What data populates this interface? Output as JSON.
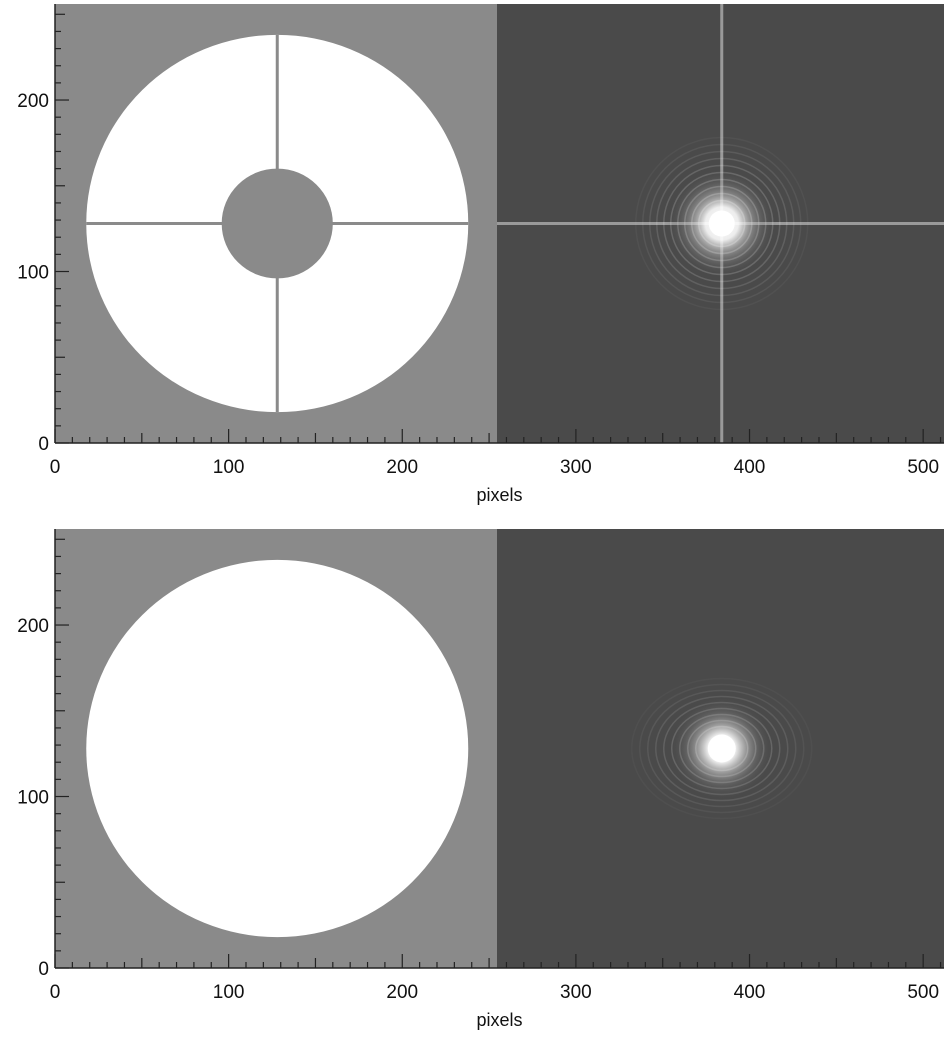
{
  "figure": {
    "panels": [
      {
        "id": "top",
        "description_free": true,
        "x_axis_label": "pixels",
        "x_ticks": [
          "0",
          "100",
          "200",
          "300",
          "400",
          "500"
        ],
        "y_ticks": [
          "0",
          "100",
          "200"
        ],
        "pupil": {
          "type": "annulus-with-spider",
          "outer_radius_px": 110,
          "inner_radius_px": 32
        },
        "psf": {
          "style": "spider-diffraction"
        }
      },
      {
        "id": "bottom",
        "x_axis_label": "pixels",
        "x_ticks": [
          "0",
          "100",
          "200",
          "300",
          "400",
          "500"
        ],
        "y_ticks": [
          "0",
          "100",
          "200"
        ],
        "pupil": {
          "type": "filled-circle",
          "outer_radius_px": 110,
          "inner_radius_px": 0
        },
        "psf": {
          "style": "airy"
        }
      }
    ],
    "colors": {
      "pupil_background": "#8a8a8a",
      "pupil_fill": "#ffffff",
      "psf_background": "#4a4a4a",
      "axis": "#222222"
    }
  }
}
